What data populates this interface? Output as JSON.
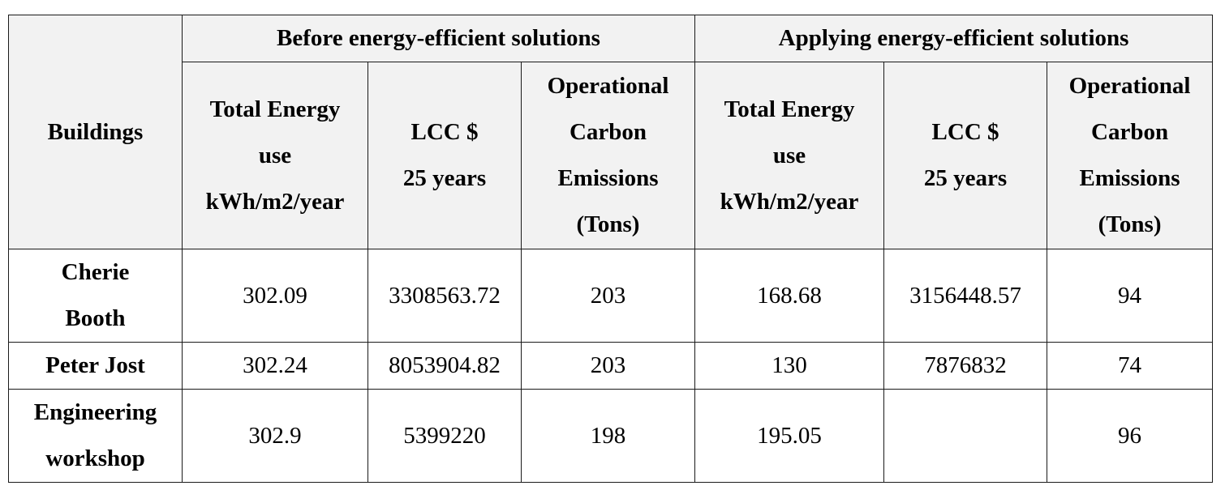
{
  "table": {
    "corner_label": "Buildings",
    "group_headers": [
      "Before energy-efficient solutions",
      "Applying energy-efficient solutions"
    ],
    "sub_headers": [
      [
        "Total Energy",
        "use",
        "kWh/m2/year"
      ],
      [
        "LCC $",
        "25 years"
      ],
      [
        "Operational",
        "Carbon",
        "Emissions",
        "(Tons)"
      ],
      [
        "Total Energy",
        "use",
        "kWh/m2/year"
      ],
      [
        "LCC $",
        "25 years"
      ],
      [
        "Operational",
        "Carbon",
        "Emissions",
        "(Tons)"
      ]
    ],
    "rows": [
      {
        "building": [
          "Cherie",
          "Booth"
        ],
        "values": [
          "302.09",
          "3308563.72",
          "203",
          "168.68",
          "3156448.57",
          "94"
        ]
      },
      {
        "building": [
          "Peter Jost"
        ],
        "values": [
          "302.24",
          "8053904.82",
          "203",
          "130",
          "7876832",
          "74"
        ]
      },
      {
        "building": [
          "Engineering",
          "workshop"
        ],
        "values": [
          "302.9",
          "5399220",
          "198",
          "195.05",
          "",
          "96"
        ]
      }
    ]
  }
}
